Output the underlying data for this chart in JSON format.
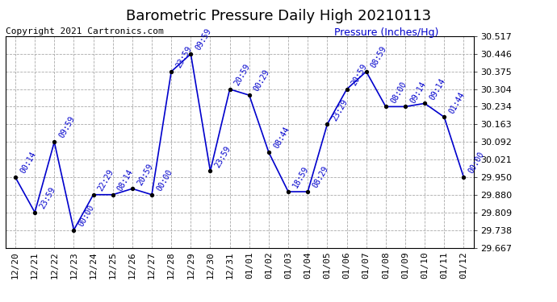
{
  "title": "Barometric Pressure Daily High 20210113",
  "ylabel": "Pressure (Inches/Hg)",
  "copyright": "Copyright 2021 Cartronics.com",
  "ylim": [
    29.667,
    30.517
  ],
  "yticks": [
    29.667,
    29.738,
    29.809,
    29.88,
    29.95,
    30.021,
    30.092,
    30.163,
    30.234,
    30.304,
    30.375,
    30.446,
    30.517
  ],
  "dates": [
    "12/20",
    "12/21",
    "12/22",
    "12/23",
    "12/24",
    "12/25",
    "12/26",
    "12/27",
    "12/28",
    "12/29",
    "12/30",
    "12/31",
    "01/01",
    "01/02",
    "01/03",
    "01/04",
    "01/05",
    "01/06",
    "01/07",
    "01/08",
    "01/09",
    "01/10",
    "01/11",
    "01/12"
  ],
  "values": [
    29.95,
    29.809,
    30.092,
    29.738,
    29.88,
    29.88,
    29.904,
    29.88,
    30.375,
    30.446,
    29.975,
    30.304,
    30.28,
    30.05,
    29.892,
    29.892,
    30.163,
    30.304,
    30.375,
    30.234,
    30.234,
    30.247,
    30.192,
    29.95
  ],
  "labels": [
    "00:14",
    "23:59",
    "09:59",
    "00:00",
    "22:29",
    "08:14",
    "20:59",
    "00:00",
    "23:59",
    "09:59",
    "23:59",
    "20:59",
    "00:29",
    "08:44",
    "18:59",
    "08:29",
    "23:29",
    "20:59",
    "08:59",
    "08:00",
    "09:14",
    "09:14",
    "01:44",
    "00:00"
  ],
  "line_color": "#0000cc",
  "marker_color": "#000000",
  "label_color": "#0000cc",
  "grid_color": "#aaaaaa",
  "background_color": "#ffffff",
  "title_fontsize": 13,
  "ylabel_fontsize": 9,
  "tick_fontsize": 8,
  "label_fontsize": 7,
  "copyright_fontsize": 8
}
